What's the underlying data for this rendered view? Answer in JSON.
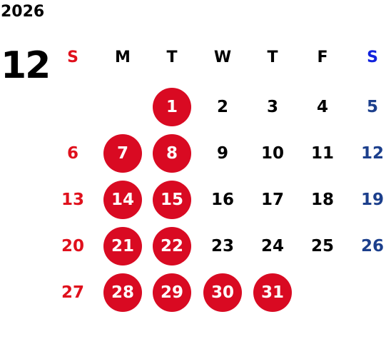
{
  "year": "2026",
  "month": "12",
  "weekdays": [
    "S",
    "M",
    "T",
    "W",
    "T",
    "F",
    "S"
  ],
  "weeks": [
    [
      {
        "d": ""
      },
      {
        "d": ""
      },
      {
        "d": "1",
        "hl": true
      },
      {
        "d": "2"
      },
      {
        "d": "3"
      },
      {
        "d": "4"
      },
      {
        "d": "5"
      }
    ],
    [
      {
        "d": "6"
      },
      {
        "d": "7",
        "hl": true
      },
      {
        "d": "8",
        "hl": true
      },
      {
        "d": "9"
      },
      {
        "d": "10"
      },
      {
        "d": "11"
      },
      {
        "d": "12"
      }
    ],
    [
      {
        "d": "13"
      },
      {
        "d": "14",
        "hl": true
      },
      {
        "d": "15",
        "hl": true
      },
      {
        "d": "16"
      },
      {
        "d": "17"
      },
      {
        "d": "18"
      },
      {
        "d": "19"
      }
    ],
    [
      {
        "d": "20"
      },
      {
        "d": "21",
        "hl": true
      },
      {
        "d": "22",
        "hl": true
      },
      {
        "d": "23"
      },
      {
        "d": "24"
      },
      {
        "d": "25"
      },
      {
        "d": "26"
      }
    ],
    [
      {
        "d": "27"
      },
      {
        "d": "28",
        "hl": true
      },
      {
        "d": "29",
        "hl": true
      },
      {
        "d": "30",
        "hl": true
      },
      {
        "d": "31",
        "hl": true
      },
      {
        "d": ""
      },
      {
        "d": ""
      }
    ]
  ],
  "colors": {
    "sunday": "#e0101c",
    "saturday": "#1c3f8c",
    "highlight": "#d90a22"
  }
}
